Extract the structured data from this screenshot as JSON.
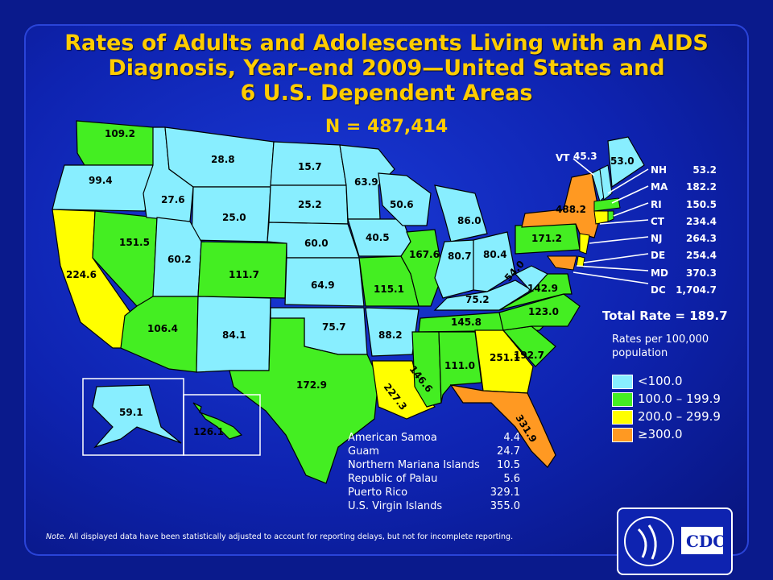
{
  "title_lines": [
    "Rates of Adults and Adolescents Living with an AIDS",
    "Diagnosis, Year–end 2009—United States and",
    "6 U.S. Dependent Areas"
  ],
  "subtitle": "N = 487,414",
  "states": [
    {
      "abbr": "WA",
      "value": "109.2",
      "color": "#44ee22"
    },
    {
      "abbr": "OR",
      "value": "99.4",
      "color": "#88eeff"
    },
    {
      "abbr": "CA",
      "value": "224.6",
      "color": "#ffff00"
    },
    {
      "abbr": "NV",
      "value": "151.5",
      "color": "#44ee22"
    },
    {
      "abbr": "ID",
      "value": "27.6",
      "color": "#88eeff"
    },
    {
      "abbr": "MT",
      "value": "28.8",
      "color": "#88eeff"
    },
    {
      "abbr": "WY",
      "value": "25.0",
      "color": "#88eeff"
    },
    {
      "abbr": "UT",
      "value": "60.2",
      "color": "#88eeff"
    },
    {
      "abbr": "AZ",
      "value": "106.4",
      "color": "#44ee22"
    },
    {
      "abbr": "CO",
      "value": "111.7",
      "color": "#44ee22"
    },
    {
      "abbr": "NM",
      "value": "84.1",
      "color": "#88eeff"
    },
    {
      "abbr": "ND",
      "value": "15.7",
      "color": "#88eeff"
    },
    {
      "abbr": "SD",
      "value": "25.2",
      "color": "#88eeff"
    },
    {
      "abbr": "NE",
      "value": "60.0",
      "color": "#88eeff"
    },
    {
      "abbr": "KS",
      "value": "64.9",
      "color": "#88eeff"
    },
    {
      "abbr": "OK",
      "value": "75.7",
      "color": "#88eeff"
    },
    {
      "abbr": "TX",
      "value": "172.9",
      "color": "#44ee22"
    },
    {
      "abbr": "MN",
      "value": "63.9",
      "color": "#88eeff"
    },
    {
      "abbr": "IA",
      "value": "40.5",
      "color": "#88eeff"
    },
    {
      "abbr": "MO",
      "value": "115.1",
      "color": "#44ee22"
    },
    {
      "abbr": "AR",
      "value": "88.2",
      "color": "#88eeff"
    },
    {
      "abbr": "LA",
      "value": "227.3",
      "color": "#ffff00"
    },
    {
      "abbr": "WI",
      "value": "50.6",
      "color": "#88eeff"
    },
    {
      "abbr": "IL",
      "value": "167.6",
      "color": "#44ee22"
    },
    {
      "abbr": "MI",
      "value": "86.0",
      "color": "#88eeff"
    },
    {
      "abbr": "IN",
      "value": "80.7",
      "color": "#88eeff"
    },
    {
      "abbr": "OH",
      "value": "80.4",
      "color": "#88eeff"
    },
    {
      "abbr": "KY",
      "value": "75.2",
      "color": "#88eeff"
    },
    {
      "abbr": "TN",
      "value": "145.8",
      "color": "#44ee22"
    },
    {
      "abbr": "MS",
      "value": "146.6",
      "color": "#44ee22"
    },
    {
      "abbr": "AL",
      "value": "111.0",
      "color": "#44ee22"
    },
    {
      "abbr": "GA",
      "value": "251.1",
      "color": "#ffff00"
    },
    {
      "abbr": "FL",
      "value": "331.9",
      "color": "#ff9922"
    },
    {
      "abbr": "SC",
      "value": "192.7",
      "color": "#44ee22"
    },
    {
      "abbr": "NC",
      "value": "123.0",
      "color": "#44ee22"
    },
    {
      "abbr": "VA",
      "value": "142.9",
      "color": "#44ee22"
    },
    {
      "abbr": "WV",
      "value": "54.0",
      "color": "#88eeff"
    },
    {
      "abbr": "PA",
      "value": "171.2",
      "color": "#44ee22"
    },
    {
      "abbr": "NY",
      "value": "488.2",
      "color": "#ff9922"
    },
    {
      "abbr": "ME",
      "value": "53.0",
      "color": "#88eeff"
    },
    {
      "abbr": "AK",
      "value": "59.1",
      "color": "#88eeff"
    },
    {
      "abbr": "HI",
      "value": "126.1",
      "color": "#44ee22"
    }
  ],
  "vt": {
    "label": "VT",
    "value": "45.3"
  },
  "northeast_list": [
    {
      "abbr": "NH",
      "value": "53.2"
    },
    {
      "abbr": "MA",
      "value": "182.2"
    },
    {
      "abbr": "RI",
      "value": "150.5"
    },
    {
      "abbr": "CT",
      "value": "234.4"
    },
    {
      "abbr": "NJ",
      "value": "264.3"
    },
    {
      "abbr": "DE",
      "value": "254.4"
    },
    {
      "abbr": "MD",
      "value": "370.3"
    },
    {
      "abbr": "DC",
      "value": "1,704.7"
    }
  ],
  "total_rate": {
    "label": "Total Rate",
    "value": "= 189.7"
  },
  "rates_note": "Rates per 100,000 population",
  "legend": [
    {
      "label": "<100.0",
      "color": "#88eeff"
    },
    {
      "label": "100.0 – 199.9",
      "color": "#44ee22"
    },
    {
      "label": "200.0 – 299.9",
      "color": "#ffff00"
    },
    {
      "label": "≥300.0",
      "color": "#ff9922"
    }
  ],
  "dependent_areas": [
    {
      "name": "American Samoa",
      "value": "4.4"
    },
    {
      "name": "Guam",
      "value": "24.7"
    },
    {
      "name": "Northern Mariana Islands",
      "value": "10.5"
    },
    {
      "name": "Republic of Palau",
      "value": "5.6"
    },
    {
      "name": "Puerto Rico",
      "value": "329.1"
    },
    {
      "name": "U.S. Virgin Islands",
      "value": "355.0"
    }
  ],
  "note_prefix": "Note.",
  "note_text": " All displayed data have been statistically adjusted to account for reporting delays, but not for incomplete reporting.",
  "logo_text": "CDC"
}
